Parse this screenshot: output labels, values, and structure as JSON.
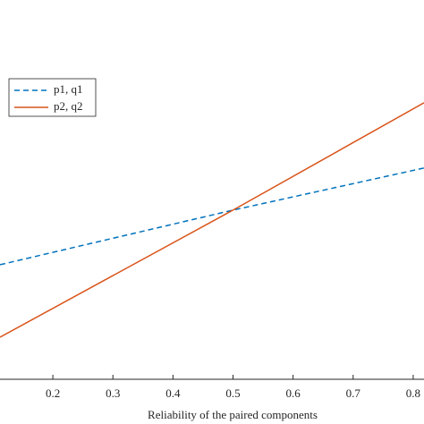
{
  "chart_data": {
    "type": "line",
    "x_label": "Reliability of the paired components",
    "x": [
      0.112,
      0.5,
      0.818
    ],
    "series": [
      {
        "name": "p1, q1",
        "color": "#0072bd",
        "dash": true,
        "values": [
          0.302,
          0.446,
          0.557
        ]
      },
      {
        "name": "p2, q2",
        "color": "#d95319",
        "dash": false,
        "values": [
          0.111,
          0.446,
          0.729
        ]
      }
    ],
    "xlim": [
      0.112,
      0.818
    ],
    "xticks": [
      0.2,
      0.3,
      0.4,
      0.5,
      0.6,
      0.7,
      0.8
    ],
    "ylim": [
      0,
      1
    ],
    "legend": "upper-left"
  }
}
